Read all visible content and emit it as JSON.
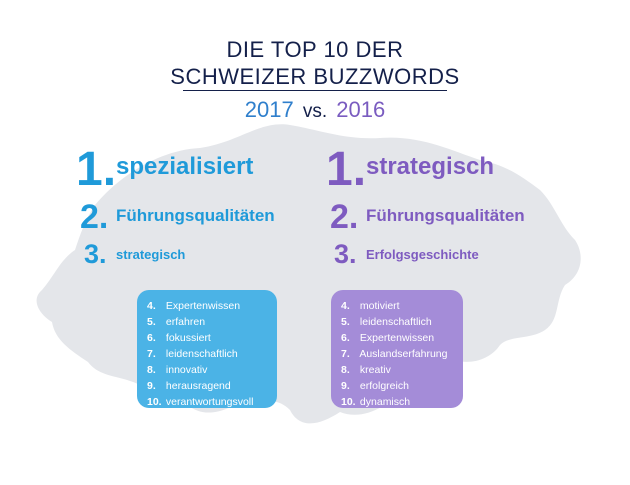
{
  "title": {
    "line1": "DIE TOP 10 DER",
    "line2": "SCHWEIZER BUZZWORDS"
  },
  "comparison": {
    "year_a": "2017",
    "vs": "vs.",
    "year_b": "2016"
  },
  "colors": {
    "navy": "#14204a",
    "blue_2017": "#1f9ad9",
    "purple_2016": "#7e5bc0",
    "map_gray": "#e4e6ea"
  },
  "list_2017": {
    "top": [
      {
        "num": "1.",
        "word": "spezialisiert"
      },
      {
        "num": "2.",
        "word": "Führungsqualitäten"
      },
      {
        "num": "3.",
        "word": "strategisch"
      }
    ],
    "rest": [
      {
        "num": "4.",
        "word": "Expertenwissen"
      },
      {
        "num": "5.",
        "word": "erfahren"
      },
      {
        "num": "6.",
        "word": "fokussiert"
      },
      {
        "num": "7.",
        "word": "leidenschaftlich"
      },
      {
        "num": "8.",
        "word": "innovativ"
      },
      {
        "num": "9.",
        "word": "herausragend"
      },
      {
        "num": "10.",
        "word": "verantwortungsvoll"
      }
    ]
  },
  "list_2016": {
    "top": [
      {
        "num": "1.",
        "word": "strategisch"
      },
      {
        "num": "2.",
        "word": "Führungsqualitäten"
      },
      {
        "num": "3.",
        "word": "Erfolgsgeschichte"
      }
    ],
    "rest": [
      {
        "num": "4.",
        "word": "motiviert"
      },
      {
        "num": "5.",
        "word": "leidenschaftlich"
      },
      {
        "num": "6.",
        "word": "Expertenwissen"
      },
      {
        "num": "7.",
        "word": "Auslandserfahrung"
      },
      {
        "num": "8.",
        "word": "kreativ"
      },
      {
        "num": "9.",
        "word": "erfolgreich"
      },
      {
        "num": "10.",
        "word": "dynamisch"
      }
    ]
  }
}
